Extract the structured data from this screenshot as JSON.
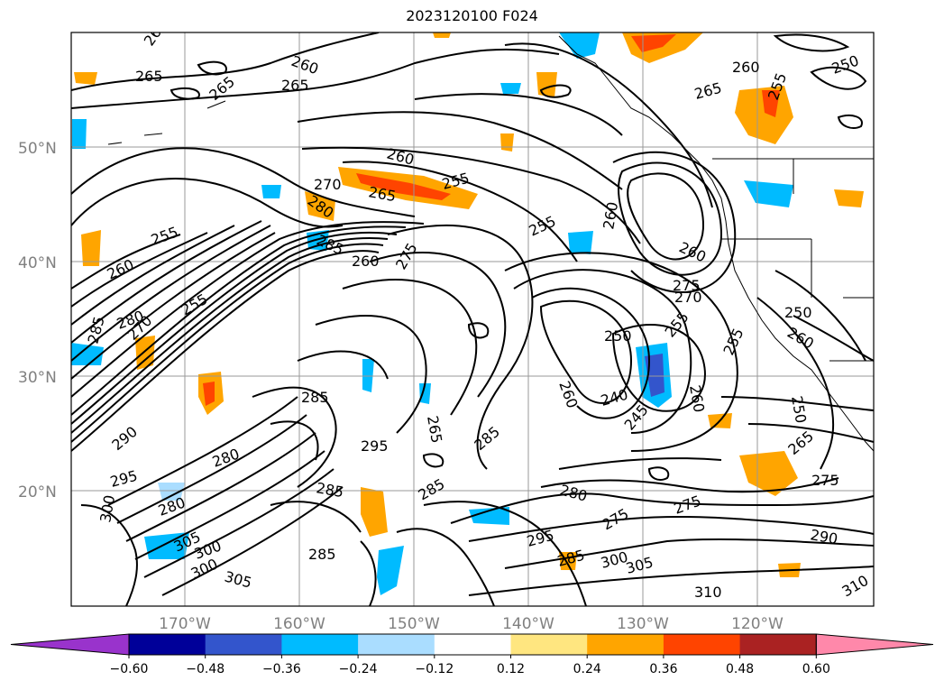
{
  "title": "2023120100 F024",
  "lat_ticks": [
    "50°N",
    "40°N",
    "30°N",
    "20°N"
  ],
  "lon_ticks": [
    "170°W",
    "160°W",
    "150°W",
    "140°W",
    "130°W",
    "120°W"
  ],
  "contour_labels": [
    "260",
    "265",
    "265",
    "265",
    "260",
    "250",
    "255",
    "260",
    "265",
    "255",
    "270",
    "265",
    "255",
    "260",
    "280",
    "255",
    "260",
    "285",
    "260",
    "275",
    "250",
    "275",
    "270",
    "285",
    "280",
    "270",
    "255",
    "250",
    "255",
    "255",
    "260",
    "260",
    "260",
    "260",
    "260",
    "285",
    "240",
    "245",
    "265",
    "250",
    "290",
    "295",
    "285",
    "280",
    "265",
    "295",
    "280",
    "275",
    "290",
    "275",
    "275",
    "285",
    "305",
    "305",
    "300",
    "295",
    "285",
    "310",
    "310",
    "300",
    "300",
    "305",
    "300",
    "280",
    "285",
    "285"
  ],
  "colorbar": {
    "ticks": [
      "−0.60",
      "−0.48",
      "−0.36",
      "−0.24",
      "−0.12",
      "0.12",
      "0.24",
      "0.36",
      "0.48",
      "0.60"
    ],
    "colors": [
      "#9933cc",
      "#000099",
      "#3355cc",
      "#00bbff",
      "#aaddff",
      "#ffffff",
      "#ffe680",
      "#ffa500",
      "#ff4400",
      "#aa2222",
      "#ff88aa"
    ]
  }
}
